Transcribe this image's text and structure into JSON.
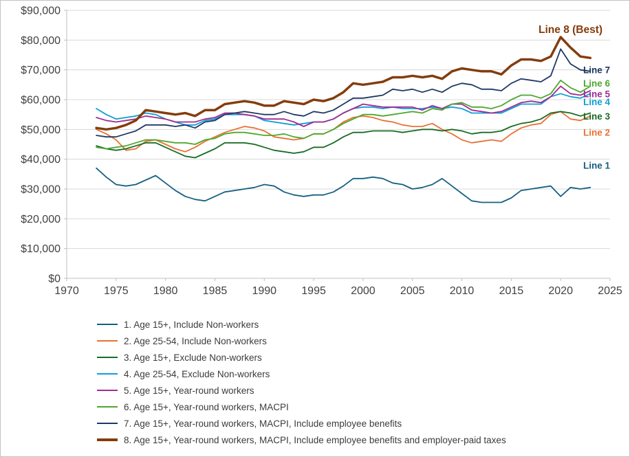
{
  "chart_data": {
    "type": "line",
    "title": "",
    "xlabel": "",
    "ylabel": "",
    "xlim": [
      1970,
      2025
    ],
    "ylim": [
      0,
      90000
    ],
    "grid": "horizontal",
    "legend_position": "bottom-left",
    "x_ticks": [
      1970,
      1975,
      1980,
      1985,
      1990,
      1995,
      2000,
      2005,
      2010,
      2015,
      2020,
      2025
    ],
    "y_ticks": [
      0,
      10000,
      20000,
      30000,
      40000,
      50000,
      60000,
      70000,
      80000,
      90000
    ],
    "y_tick_labels": [
      "$0",
      "$10,000",
      "$20,000",
      "$30,000",
      "$40,000",
      "$50,000",
      "$60,000",
      "$70,000",
      "$80,000",
      "$90,000"
    ],
    "years": [
      1973,
      1974,
      1975,
      1976,
      1977,
      1978,
      1979,
      1980,
      1981,
      1982,
      1983,
      1984,
      1985,
      1986,
      1987,
      1988,
      1989,
      1990,
      1991,
      1992,
      1993,
      1994,
      1995,
      1996,
      1997,
      1998,
      1999,
      2000,
      2001,
      2002,
      2003,
      2004,
      2005,
      2006,
      2007,
      2008,
      2009,
      2010,
      2011,
      2012,
      2013,
      2014,
      2015,
      2016,
      2017,
      2018,
      2019,
      2020,
      2021,
      2022,
      2023
    ],
    "series": [
      {
        "name": "1. Age 15+, Include Non-workers",
        "short_label": "Line 1",
        "color": "#156082",
        "width": 1.8,
        "values": [
          37000,
          34000,
          31500,
          31000,
          31500,
          33000,
          34500,
          32000,
          29500,
          27500,
          26500,
          26000,
          27500,
          29000,
          29500,
          30000,
          30500,
          31500,
          31000,
          29000,
          28000,
          27500,
          28000,
          28000,
          29000,
          31000,
          33500,
          33500,
          34000,
          33500,
          32000,
          31500,
          30000,
          30500,
          31500,
          33500,
          31000,
          28500,
          26000,
          25500,
          25500,
          25500,
          27000,
          29500,
          30000,
          30500,
          31000,
          27500,
          30500,
          30000,
          30500
        ]
      },
      {
        "name": "2. Age 25-54, Include Non-workers",
        "short_label": "Line 2",
        "color": "#E97132",
        "width": 1.8,
        "values": [
          50000,
          48500,
          46500,
          43000,
          43500,
          46000,
          46500,
          45000,
          43500,
          42500,
          44000,
          46000,
          47500,
          49000,
          50000,
          51000,
          50500,
          49500,
          47500,
          47000,
          46500,
          47000,
          48500,
          48500,
          50000,
          52500,
          54000,
          54500,
          54000,
          53000,
          52500,
          51500,
          51000,
          51000,
          52000,
          50000,
          48500,
          46500,
          45500,
          46000,
          46500,
          46000,
          48500,
          50500,
          51500,
          52000,
          55000,
          56000,
          53500,
          53000,
          54500
        ]
      },
      {
        "name": "3. Age 15+, Exclude Non-workers",
        "short_label": "Line 3",
        "color": "#196B24",
        "width": 1.8,
        "values": [
          44500,
          43500,
          43000,
          43500,
          44500,
          45500,
          45500,
          44000,
          42500,
          41000,
          40500,
          42000,
          43500,
          45500,
          45500,
          45500,
          45000,
          44000,
          43000,
          42500,
          42000,
          42500,
          44000,
          44000,
          45500,
          47500,
          49000,
          49000,
          49500,
          49500,
          49500,
          49000,
          49500,
          50000,
          50000,
          49500,
          50000,
          49500,
          48500,
          49000,
          49000,
          49500,
          51000,
          52000,
          52500,
          53500,
          55500,
          56000,
          55500,
          54500,
          55500
        ]
      },
      {
        "name": "4. Age 25-54, Exclude Non-workers",
        "short_label": "Line 4",
        "color": "#0F9ED5",
        "width": 1.8,
        "values": [
          57000,
          55000,
          53500,
          54000,
          54500,
          55500,
          55000,
          53500,
          52500,
          51500,
          51500,
          53000,
          53500,
          55000,
          55000,
          55000,
          54500,
          53000,
          52500,
          52000,
          51500,
          52000,
          52500,
          52500,
          53500,
          55500,
          57000,
          57500,
          57500,
          57000,
          57500,
          57000,
          57000,
          57000,
          57500,
          57000,
          57500,
          57000,
          55500,
          55500,
          55500,
          55500,
          57000,
          58500,
          58500,
          58500,
          61000,
          62000,
          61000,
          60500,
          62000
        ]
      },
      {
        "name": "5. Age 15+, Year-round workers",
        "short_label": "Line 5",
        "color": "#A02B93",
        "width": 1.8,
        "values": [
          54000,
          53000,
          52500,
          53000,
          53500,
          54500,
          54000,
          53500,
          52500,
          52500,
          52500,
          53500,
          54000,
          55500,
          55500,
          55000,
          54500,
          53500,
          53500,
          53500,
          52500,
          51000,
          52500,
          52500,
          53500,
          55500,
          57000,
          58500,
          58000,
          57500,
          57500,
          57500,
          57500,
          56500,
          58000,
          57000,
          58500,
          58500,
          56500,
          56000,
          55500,
          56000,
          57500,
          59000,
          59500,
          59000,
          61000,
          64500,
          62000,
          61500,
          63000
        ]
      },
      {
        "name": "6. Age 15+, Year-round workers, MACPI",
        "short_label": "Line 6",
        "color": "#4EA72E",
        "width": 1.8,
        "values": [
          44000,
          43500,
          44000,
          44500,
          45500,
          46500,
          46500,
          46000,
          45500,
          45500,
          45000,
          46500,
          47000,
          48500,
          49000,
          49000,
          48500,
          48000,
          48000,
          48500,
          47500,
          47000,
          48500,
          48500,
          50000,
          52000,
          53500,
          55000,
          55000,
          54500,
          55000,
          55500,
          56000,
          55500,
          57000,
          56500,
          58500,
          59000,
          57500,
          57500,
          57000,
          58000,
          60000,
          61500,
          61500,
          60500,
          62000,
          66500,
          64000,
          62500,
          64500
        ]
      },
      {
        "name": "7. Age 15+, Year-round workers, MACPI, Include employee benefits",
        "short_label": "Line 7",
        "color": "#1F3864",
        "width": 1.8,
        "values": [
          48000,
          47500,
          47500,
          48500,
          49500,
          51500,
          51500,
          51500,
          51000,
          51500,
          50500,
          52500,
          53000,
          55000,
          55500,
          56000,
          55500,
          55000,
          55000,
          56000,
          55000,
          54500,
          56000,
          55500,
          56500,
          58500,
          60500,
          60500,
          61000,
          61500,
          63500,
          63000,
          63500,
          62500,
          63500,
          62500,
          64500,
          65500,
          65000,
          63500,
          63500,
          63000,
          65500,
          67000,
          66500,
          66000,
          68000,
          77000,
          72000,
          70000,
          69500
        ]
      },
      {
        "name": "8. Age 15+, Year-round workers, MACPI, Include employee benefits and employer-paid taxes",
        "short_label": "Line 8 (Best)",
        "color": "#843C0C",
        "width": 3.5,
        "values": [
          50500,
          50000,
          50500,
          51500,
          53000,
          56500,
          56000,
          55500,
          55000,
          55500,
          54500,
          56500,
          56500,
          58500,
          59000,
          59500,
          59000,
          58000,
          58000,
          59500,
          59000,
          58500,
          60000,
          59500,
          60500,
          62500,
          65500,
          65000,
          65500,
          66000,
          67500,
          67500,
          68000,
          67500,
          68000,
          67000,
          69500,
          70500,
          70000,
          69500,
          69500,
          68500,
          71500,
          73500,
          73500,
          73000,
          74500,
          81000,
          77500,
          74500,
          74000
        ]
      }
    ],
    "annotations": [
      {
        "text": "Line 8 (Best)",
        "x": 2021,
        "y": 83500,
        "color": "#843C0C",
        "size": 15.5,
        "anchor": "middle"
      },
      {
        "text": "Line 7",
        "x": 2025,
        "y": 70000,
        "color": "#1F3864",
        "size": 13.5,
        "anchor": "end"
      },
      {
        "text": "Line 6",
        "x": 2025,
        "y": 65500,
        "color": "#4EA72E",
        "size": 13.5,
        "anchor": "end"
      },
      {
        "text": "Line 5",
        "x": 2025,
        "y": 62000,
        "color": "#A02B93",
        "size": 13.5,
        "anchor": "end"
      },
      {
        "text": "Line 4",
        "x": 2025,
        "y": 59300,
        "color": "#0F9ED5",
        "size": 13.5,
        "anchor": "end"
      },
      {
        "text": "Line 3",
        "x": 2025,
        "y": 54500,
        "color": "#196B24",
        "size": 13.5,
        "anchor": "end"
      },
      {
        "text": "Line 2",
        "x": 2025,
        "y": 49000,
        "color": "#E97132",
        "size": 13.5,
        "anchor": "end"
      },
      {
        "text": "Line 1",
        "x": 2025,
        "y": 38000,
        "color": "#156082",
        "size": 13.5,
        "anchor": "end"
      }
    ],
    "colors": {
      "gridline": "#D9D9D9",
      "axis": "#BFBFBF",
      "axis_text": "#404040",
      "legend_text": "#3B3B3B",
      "background": "#FFFFFF"
    }
  }
}
